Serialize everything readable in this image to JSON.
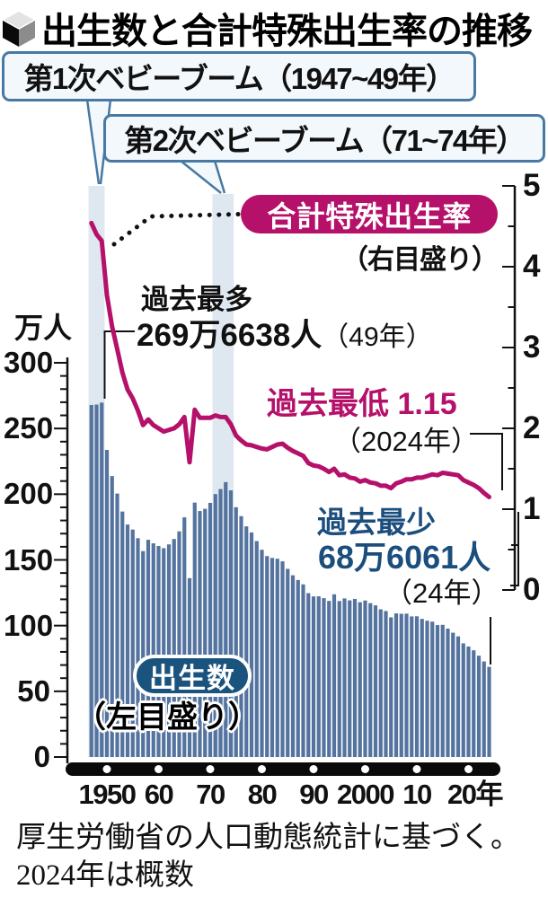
{
  "title": {
    "text": "出生数と合計特殊出生率の推移",
    "icon": "cube-bullet-icon"
  },
  "callouts": [
    {
      "label": "第1次ベビーブーム（1947~49年）"
    },
    {
      "label": "第2次ベビーブーム（71~74年）"
    }
  ],
  "line_legend": {
    "pill": "合計特殊出生率",
    "sub": "（右目盛り）"
  },
  "bar_legend": {
    "pill": "出生数",
    "sub": "（左目盛り）"
  },
  "annotations": {
    "record_high": {
      "line1": "過去最多",
      "value": "269万6638人",
      "note": "（49年）"
    },
    "record_low_rate": {
      "label": "過去最低",
      "value": "1.15",
      "note": "（2024年）"
    },
    "record_low_births": {
      "line1": "過去最少",
      "value": "68万6061人",
      "note": "（24年）"
    }
  },
  "axes": {
    "left_unit": "万人",
    "left_ticks": [
      "300",
      "250",
      "200",
      "150",
      "100",
      "50",
      "0"
    ],
    "right_ticks": [
      "5",
      "4",
      "3",
      "2",
      "1",
      "0"
    ],
    "x_ticks": [
      "1950",
      "60",
      "70",
      "80",
      "90",
      "2000",
      "10",
      "20年"
    ]
  },
  "footer": {
    "line1": "厚生労働省の人口動態統計に基づく。",
    "line2": "2024年は概数"
  },
  "colors": {
    "accent_pink": "#b5106a",
    "bar_blue": "#54739e",
    "navy_text": "#1b4e7d",
    "band_blue": "#dfe7f0",
    "callout_border": "#4779a3",
    "callout_bg": "#f3f8fc",
    "axis_black": "#111111"
  },
  "chart_data": {
    "type": "bar+line",
    "title": "出生数と合計特殊出生率の推移",
    "x_years": {
      "start": 1947,
      "end": 2024
    },
    "bands": [
      {
        "label": "第1次ベビーブーム",
        "from": 1947,
        "to": 1949
      },
      {
        "label": "第2次ベビーブーム",
        "from": 1971,
        "to": 1974
      }
    ],
    "series": [
      {
        "name": "出生数",
        "type": "bar",
        "axis": "left",
        "unit": "万人",
        "ylim": [
          0,
          300
        ],
        "values": [
          267.9,
          268.2,
          269.7,
          233.7,
          213.8,
          200.5,
          186.8,
          176.9,
          173.1,
          166.5,
          156.7,
          165.3,
          162.6,
          160.6,
          158.9,
          161.8,
          165.9,
          171.7,
          182.4,
          136.1,
          193.6,
          187.2,
          188.9,
          193.4,
          200.1,
          203.9,
          209.2,
          202.9,
          190.1,
          183.3,
          175.5,
          170.9,
          164.3,
          157.7,
          152.9,
          151.5,
          150.9,
          148.9,
          143.2,
          138.3,
          134.7,
          131.4,
          124.7,
          122.2,
          122.3,
          120.9,
          118.8,
          123.8,
          118.7,
          120.7,
          119.2,
          120.3,
          117.8,
          119.1,
          117.1,
          115.4,
          112.4,
          111.1,
          106.3,
          109.3,
          109.0,
          109.1,
          107.0,
          107.1,
          105.1,
          103.7,
          103.0,
          100.4,
          100.6,
          97.7,
          94.6,
          91.8,
          86.5,
          84.1,
          81.2,
          77.1,
          72.7,
          68.6
        ]
      },
      {
        "name": "合計特殊出生率",
        "type": "line",
        "axis": "right",
        "ylim": [
          0,
          5
        ],
        "values": [
          4.54,
          4.4,
          4.32,
          3.65,
          3.26,
          2.98,
          2.69,
          2.48,
          2.37,
          2.22,
          2.04,
          2.11,
          2.04,
          2.0,
          1.96,
          1.98,
          2.0,
          2.05,
          2.14,
          1.58,
          2.23,
          2.13,
          2.13,
          2.13,
          2.16,
          2.14,
          2.14,
          2.05,
          1.91,
          1.85,
          1.8,
          1.79,
          1.77,
          1.75,
          1.74,
          1.77,
          1.8,
          1.81,
          1.76,
          1.72,
          1.69,
          1.66,
          1.57,
          1.54,
          1.53,
          1.5,
          1.46,
          1.5,
          1.42,
          1.43,
          1.39,
          1.38,
          1.34,
          1.36,
          1.33,
          1.32,
          1.29,
          1.29,
          1.26,
          1.32,
          1.34,
          1.37,
          1.37,
          1.39,
          1.39,
          1.41,
          1.43,
          1.42,
          1.45,
          1.44,
          1.43,
          1.42,
          1.36,
          1.33,
          1.3,
          1.26,
          1.2,
          1.15
        ]
      }
    ],
    "highlights": {
      "max_births": {
        "year": 1949,
        "value_label": "269万6638人"
      },
      "min_births": {
        "year": 2024,
        "value_label": "68万6061人"
      },
      "min_rate": {
        "year": 2024,
        "value": 1.15
      }
    }
  }
}
